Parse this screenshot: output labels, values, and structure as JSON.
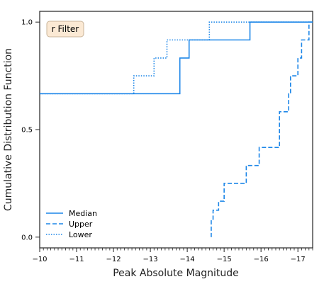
{
  "chart_data": {
    "type": "line",
    "step": true,
    "annotation": "r Filter",
    "xlabel": "Peak Absolute Magnitude",
    "ylabel": "Cumulative Distribution Function",
    "xlim": [
      -10,
      -17.4
    ],
    "ylim": [
      -0.05,
      1.05
    ],
    "x_inverted": true,
    "xticks": [
      -10,
      -11,
      -12,
      -13,
      -14,
      -15,
      -16,
      -17
    ],
    "xtick_labels": [
      "−10",
      "−11",
      "−12",
      "−13",
      "−14",
      "−15",
      "−16",
      "−17"
    ],
    "yticks": [
      0.0,
      0.5,
      1.0
    ],
    "ytick_labels": [
      "0.0",
      "0.5",
      "1.0"
    ],
    "legend_position": "lower-left",
    "series": [
      {
        "name": "Median",
        "style": "solid",
        "color": "#1c86e8",
        "x": [
          -10.0,
          -13.8,
          -13.8,
          -14.05,
          -14.05,
          -15.7,
          -15.7,
          -17.4
        ],
        "y": [
          0.667,
          0.667,
          0.833,
          0.833,
          0.917,
          0.917,
          1.0,
          1.0
        ]
      },
      {
        "name": "Upper",
        "style": "dashed",
        "color": "#1c86e8",
        "x": [
          -14.65,
          -14.65,
          -14.7,
          -14.7,
          -14.85,
          -14.85,
          -15.0,
          -15.0,
          -15.6,
          -15.6,
          -15.95,
          -15.95,
          -16.5,
          -16.5,
          -16.75,
          -16.75,
          -16.8,
          -16.8,
          -16.85,
          -16.85,
          -17.0,
          -17.0,
          -17.1,
          -17.1,
          -17.3,
          -17.3,
          -17.4
        ],
        "y": [
          0.0,
          0.083,
          0.083,
          0.125,
          0.125,
          0.167,
          0.167,
          0.25,
          0.25,
          0.333,
          0.333,
          0.417,
          0.417,
          0.583,
          0.583,
          0.667,
          0.667,
          0.75,
          0.75,
          0.75,
          0.75,
          0.833,
          0.833,
          0.917,
          0.917,
          1.0,
          1.0
        ]
      },
      {
        "name": "Lower",
        "style": "dotted",
        "color": "#1c86e8",
        "x": [
          -10.0,
          -12.55,
          -12.55,
          -13.1,
          -13.1,
          -13.45,
          -13.45,
          -14.6,
          -14.6,
          -17.4
        ],
        "y": [
          0.667,
          0.667,
          0.75,
          0.75,
          0.833,
          0.833,
          0.917,
          0.917,
          1.0,
          1.0
        ]
      }
    ]
  }
}
